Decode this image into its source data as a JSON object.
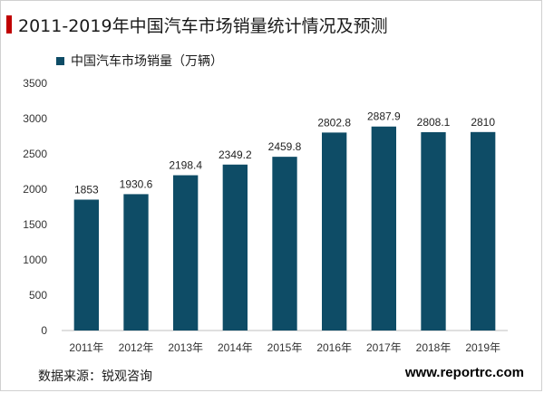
{
  "chart_data": {
    "type": "bar",
    "title": "2011-2019年中国汽车市场销量统计情况及预测",
    "categories": [
      "2011年",
      "2012年",
      "2013年",
      "2014年",
      "2015年",
      "2016年",
      "2017年",
      "2018年",
      "2019年"
    ],
    "series": [
      {
        "name": "中国汽车市场销量（万辆）",
        "values": [
          1853,
          1930.6,
          2198.4,
          2349.2,
          2459.8,
          2802.8,
          2887.9,
          2808.1,
          2810
        ],
        "labels": [
          "1853",
          "1930.6",
          "2198.4",
          "2349.2",
          "2459.8",
          "2802.8",
          "2887.9",
          "2808.1",
          "2810"
        ]
      }
    ],
    "ylim": [
      0,
      3500
    ],
    "yticks": [
      0,
      500,
      1000,
      1500,
      2000,
      2500,
      3000,
      3500
    ],
    "grid": false,
    "legend_position": "top-left",
    "bar_color": "#0e4c66"
  },
  "footer": {
    "source": "数据来源：锐观咨询",
    "website": "www.reportrc.com"
  },
  "colors": {
    "accent": "#c00000",
    "bar": "#0e4c66"
  }
}
